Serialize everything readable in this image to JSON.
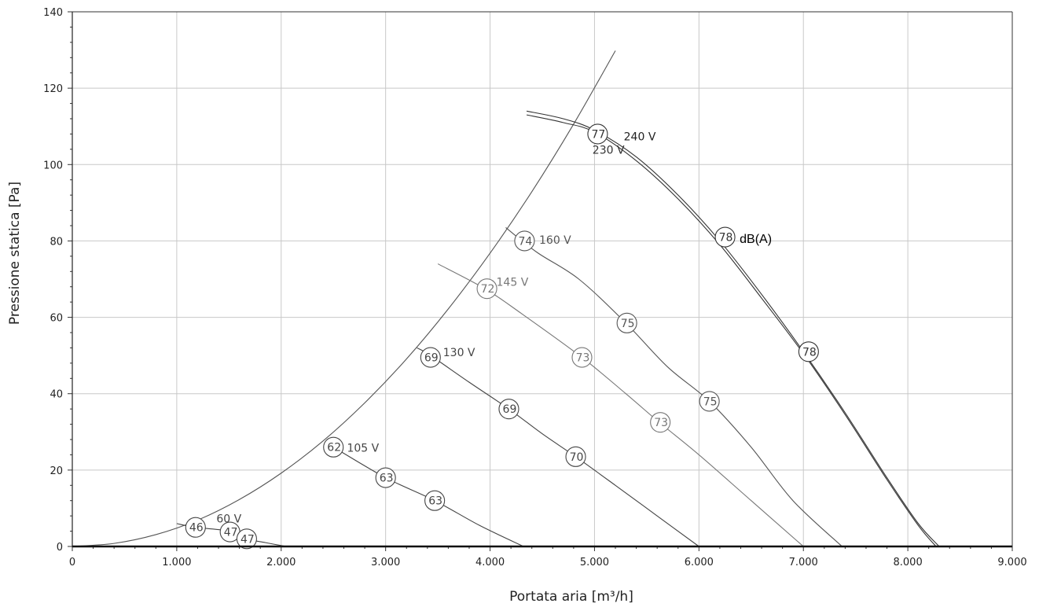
{
  "chart_data": {
    "type": "line",
    "xlabel": "Portata aria [m³/h]",
    "ylabel": "Pressione statica [Pa]",
    "xlim": [
      0,
      9000
    ],
    "ylim": [
      0,
      140
    ],
    "x_ticks": [
      0,
      1000,
      2000,
      3000,
      4000,
      5000,
      6000,
      7000,
      8000,
      9000
    ],
    "x_tick_labels": [
      "0",
      "1.000",
      "2.000",
      "3.000",
      "4.000",
      "5.000",
      "6.000",
      "7.000",
      "8.000",
      "9.000"
    ],
    "y_ticks": [
      0,
      20,
      40,
      60,
      80,
      100,
      120,
      140
    ],
    "y_tick_labels": [
      "0",
      "20",
      "40",
      "60",
      "80",
      "100",
      "120",
      "140"
    ],
    "grid": true,
    "sound_unit_label": "dB(A)",
    "system_curve": {
      "x": [
        0,
        400,
        800,
        1200,
        1600,
        2000,
        2400,
        2800,
        3200,
        3600,
        4000,
        4400,
        4800,
        5200
      ],
      "y": [
        0,
        0.8,
        3.1,
        6.9,
        12.3,
        19.2,
        27.6,
        37.6,
        49.1,
        62.2,
        76.8,
        92.9,
        110.6,
        129.8
      ]
    },
    "series": [
      {
        "name": "240 V",
        "color": "#333333",
        "x": [
          4350,
          4700,
          5000,
          5400,
          5800,
          6200,
          6600,
          7000,
          7400,
          7800,
          8100,
          8300
        ],
        "y": [
          114,
          112,
          109,
          102,
          92,
          80,
          66,
          51,
          35,
          18,
          6,
          0
        ]
      },
      {
        "name": "230 V",
        "color": "#333333",
        "x": [
          4350,
          4700,
          5000,
          5400,
          5800,
          6200,
          6600,
          7000,
          7400,
          7800,
          8100,
          8270
        ],
        "y": [
          113,
          111,
          108.5,
          101,
          91,
          79,
          65,
          50.5,
          34.5,
          17.5,
          5.5,
          0
        ]
      },
      {
        "name": "160 V",
        "color": "#555555",
        "x": [
          4150,
          4450,
          4850,
          5300,
          5700,
          6100,
          6500,
          6900,
          7370
        ],
        "y": [
          83.5,
          77,
          70,
          58.5,
          47,
          38,
          26,
          12,
          0
        ]
      },
      {
        "name": "145 V",
        "color": "#777777",
        "x": [
          3500,
          3950,
          4300,
          4880,
          5300,
          5620,
          6000,
          6500,
          7000
        ],
        "y": [
          74,
          67.5,
          61,
          49.5,
          40,
          32.5,
          24,
          12,
          0
        ]
      },
      {
        "name": "130 V",
        "color": "#444444",
        "x": [
          3300,
          3430,
          3800,
          4180,
          4500,
          4820,
          5200,
          5600,
          6000
        ],
        "y": [
          52,
          50,
          43,
          36,
          29.5,
          23.5,
          16,
          8,
          0
        ]
      },
      {
        "name": "105 V",
        "color": "#444444",
        "x": [
          2450,
          2500,
          3000,
          3470,
          3900,
          4320
        ],
        "y": [
          26.5,
          26,
          18,
          12,
          5.5,
          0
        ]
      },
      {
        "name": "60 V",
        "color": "#444444",
        "x": [
          1000,
          1180,
          1510,
          1670,
          1850,
          2050
        ],
        "y": [
          6,
          5,
          4,
          2,
          1,
          0
        ]
      }
    ],
    "sound_markers": [
      {
        "x": 5030,
        "y": 108,
        "label": "77",
        "color": "#333333"
      },
      {
        "x": 6250,
        "y": 81,
        "label": "78",
        "color": "#333333"
      },
      {
        "x": 7050,
        "y": 51,
        "label": "78",
        "color": "#333333"
      },
      {
        "x": 4330,
        "y": 80,
        "label": "74",
        "color": "#555555"
      },
      {
        "x": 5310,
        "y": 58.5,
        "label": "75",
        "color": "#555555"
      },
      {
        "x": 6100,
        "y": 38,
        "label": "75",
        "color": "#555555"
      },
      {
        "x": 3970,
        "y": 67.5,
        "label": "72",
        "color": "#777777"
      },
      {
        "x": 4880,
        "y": 49.5,
        "label": "73",
        "color": "#777777"
      },
      {
        "x": 5630,
        "y": 32.5,
        "label": "73",
        "color": "#777777"
      },
      {
        "x": 3430,
        "y": 49.5,
        "label": "69",
        "color": "#444444"
      },
      {
        "x": 4180,
        "y": 36,
        "label": "69",
        "color": "#444444"
      },
      {
        "x": 4820,
        "y": 23.5,
        "label": "70",
        "color": "#444444"
      },
      {
        "x": 2500,
        "y": 26,
        "label": "62",
        "color": "#444444"
      },
      {
        "x": 3000,
        "y": 18,
        "label": "63",
        "color": "#444444"
      },
      {
        "x": 3470,
        "y": 12,
        "label": "63",
        "color": "#444444"
      },
      {
        "x": 1180,
        "y": 5,
        "label": "46",
        "color": "#444444"
      },
      {
        "x": 1510,
        "y": 3.8,
        "label": "47",
        "color": "#444444"
      },
      {
        "x": 1670,
        "y": 2,
        "label": "47",
        "color": "#444444"
      }
    ],
    "series_labels": [
      {
        "text": "240 V",
        "x": 5280,
        "y": 106.3,
        "color": "#222222"
      },
      {
        "text": "230 V",
        "x": 4980,
        "y": 102.8,
        "color": "#333333"
      },
      {
        "text": "160 V",
        "x": 4470,
        "y": 79.3,
        "color": "#555555"
      },
      {
        "text": "145 V",
        "x": 4060,
        "y": 68.3,
        "color": "#777777"
      },
      {
        "text": "130 V",
        "x": 3550,
        "y": 49.8,
        "color": "#444444"
      },
      {
        "text": "105 V",
        "x": 2630,
        "y": 24.8,
        "color": "#444444"
      },
      {
        "text": "60 V",
        "x": 1380,
        "y": 6.3,
        "color": "#444444"
      }
    ],
    "unit_label_position": {
      "x": 6390,
      "y": 79.5
    }
  }
}
